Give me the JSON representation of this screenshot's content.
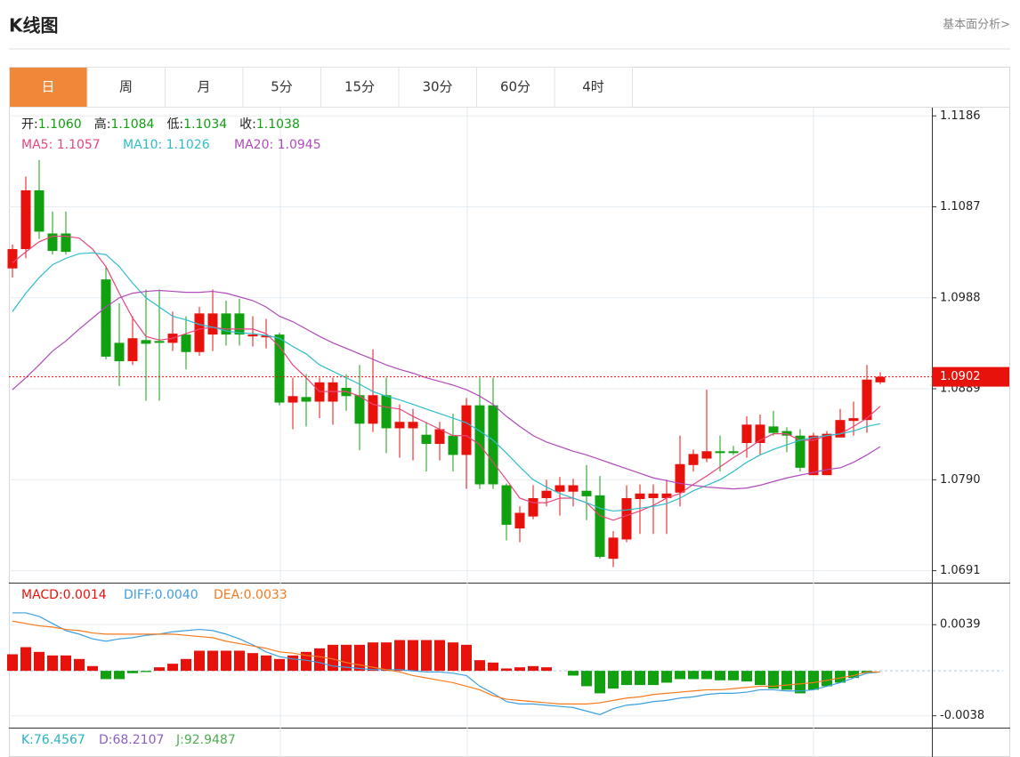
{
  "header": {
    "title": "K线图",
    "link": "基本面分析>"
  },
  "tabs": [
    "日",
    "周",
    "月",
    "5分",
    "15分",
    "30分",
    "60分",
    "4时"
  ],
  "chart_data": [
    {
      "type": "candlestick",
      "up_color": "#e8120c",
      "down_color": "#10a010",
      "ohlc_labels": [
        {
          "label": "开:",
          "value": "1.1060"
        },
        {
          "label": "高:",
          "value": "1.1084"
        },
        {
          "label": "低:",
          "value": "1.1034"
        },
        {
          "label": "收:",
          "value": "1.1038"
        }
      ],
      "open": [
        1.102,
        1.1041,
        1.1105,
        1.1058,
        1.1058,
        null,
        null,
        1.1008,
        1.0939,
        1.0919,
        1.0942,
        1.0941,
        1.0939,
        1.0948,
        1.0929,
        1.0948,
        1.0971,
        1.0971,
        1.0946,
        1.0945,
        1.0948,
        1.0874,
        1.088,
        1.0875,
        1.0875,
        1.089,
        1.0882,
        1.0851,
        1.0882,
        1.0846,
        1.0846,
        1.0839,
        1.0829,
        1.0838,
        1.0817,
        1.0871,
        1.0871,
        1.0784,
        1.0737,
        1.075,
        1.077,
        1.0777,
        1.0777,
        1.0778,
        1.0773,
        1.0704,
        1.0725,
        1.0769,
        1.077,
        1.077,
        1.0776,
        1.0806,
        1.0813,
        1.0821,
        1.0821,
        1.083,
        1.083,
        1.0848,
        1.0843,
        1.0838,
        1.0795,
        1.0795,
        1.0836,
        1.0854,
        1.0855,
        1.0896
      ],
      "high": [
        1.1046,
        1.112,
        1.1138,
        1.1082,
        1.1082,
        null,
        null,
        1.1023,
        1.0982,
        1.0968,
        1.0997,
        1.0997,
        1.0973,
        1.0968,
        1.0978,
        1.0997,
        1.0985,
        1.0987,
        1.0968,
        1.0965,
        1.095,
        1.0901,
        1.0905,
        1.0901,
        1.0901,
        1.0905,
        1.0915,
        1.0932,
        1.0901,
        1.0872,
        1.0867,
        1.0853,
        1.0853,
        1.0862,
        1.0879,
        1.0901,
        1.0901,
        1.0786,
        1.0761,
        1.0784,
        1.079,
        1.0793,
        1.0791,
        1.0806,
        1.0794,
        1.0734,
        1.0784,
        1.0785,
        1.0785,
        1.079,
        1.0838,
        1.0823,
        1.0888,
        1.0838,
        1.0827,
        1.0859,
        1.0861,
        1.0865,
        1.0847,
        1.0845,
        1.0841,
        1.0843,
        1.0867,
        1.0875,
        1.0915,
        1.0907
      ],
      "low": [
        1.101,
        1.1031,
        1.1052,
        1.1035,
        1.1035,
        null,
        null,
        1.0921,
        1.0892,
        1.0915,
        1.0876,
        1.0876,
        1.093,
        1.091,
        1.0925,
        1.093,
        1.0936,
        1.0936,
        1.0935,
        1.0933,
        1.0871,
        1.0845,
        1.0848,
        1.0857,
        1.085,
        1.0865,
        1.0822,
        1.0842,
        1.0819,
        1.0814,
        1.0811,
        1.0799,
        1.0811,
        1.0799,
        1.078,
        1.078,
        1.078,
        1.0724,
        1.0722,
        1.0747,
        1.0761,
        1.0751,
        1.0761,
        1.0746,
        1.0704,
        1.0695,
        1.0722,
        1.0731,
        1.0731,
        1.0731,
        1.0761,
        1.0799,
        1.0809,
        1.0799,
        1.0817,
        1.0814,
        1.0817,
        1.0838,
        1.082,
        1.0799,
        1.0795,
        1.0795,
        1.0836,
        1.0838,
        1.0841,
        1.0894
      ],
      "close": [
        1.1041,
        1.1105,
        1.106,
        1.1039,
        1.1038,
        null,
        null,
        1.0924,
        1.0919,
        1.0944,
        1.0938,
        1.0939,
        1.0949,
        1.0929,
        1.0971,
        1.0971,
        1.0948,
        1.0948,
        1.0948,
        1.0947,
        1.0874,
        1.0881,
        1.0875,
        1.0896,
        1.0896,
        1.0881,
        1.0851,
        1.0882,
        1.0846,
        1.0853,
        1.0853,
        1.0829,
        1.0845,
        1.0817,
        1.0871,
        1.0785,
        1.0785,
        1.0741,
        1.0754,
        1.077,
        1.0778,
        1.0784,
        1.0784,
        1.0772,
        1.0706,
        1.0727,
        1.077,
        1.0775,
        1.0775,
        1.0775,
        1.0807,
        1.0818,
        1.0821,
        1.0819,
        1.0819,
        1.085,
        1.085,
        1.0841,
        1.0838,
        1.0803,
        1.0838,
        1.084,
        1.0855,
        1.0857,
        1.0899,
        1.0902
      ],
      "series": [
        {
          "name": "MA5: 1.1057",
          "color": "#e8457a",
          "values": [
            1.1026,
            1.1038,
            1.1049,
            1.1055,
            1.1055,
            1.1053,
            1.1041,
            1.1022,
            1.0993,
            1.0966,
            1.0946,
            1.0942,
            1.0944,
            1.0949,
            1.0954,
            1.0956,
            1.0954,
            1.0954,
            1.0954,
            1.0949,
            1.0935,
            1.0915,
            1.0901,
            1.0886,
            1.0886,
            1.0886,
            1.0881,
            1.0872,
            1.0869,
            1.0867,
            1.0859,
            1.0852,
            1.0845,
            1.0838,
            1.0838,
            1.0828,
            1.0809,
            1.079,
            1.077,
            1.0765,
            1.0765,
            1.077,
            1.077,
            1.0765,
            1.0751,
            1.0746,
            1.0751,
            1.0756,
            1.0762,
            1.077,
            1.0775,
            1.0785,
            1.0794,
            1.0804,
            1.0814,
            1.0823,
            1.0833,
            1.084,
            1.084,
            1.0833,
            1.0833,
            1.0838,
            1.084,
            1.0848,
            1.0857,
            1.087
          ]
        },
        {
          "name": "MA10: 1.1026",
          "color": "#2fbccc",
          "values": [
            1.0973,
            1.0993,
            1.101,
            1.1024,
            1.1031,
            1.1036,
            1.1037,
            1.1035,
            1.1022,
            1.1004,
            1.0988,
            1.0978,
            1.0968,
            1.0964,
            1.0959,
            1.0956,
            1.0952,
            1.095,
            1.0949,
            1.0947,
            1.0944,
            1.0935,
            1.0927,
            1.0915,
            1.0908,
            1.0901,
            1.0894,
            1.0886,
            1.0881,
            1.0877,
            1.0872,
            1.0867,
            1.0862,
            1.0857,
            1.0852,
            1.0843,
            1.0833,
            1.0819,
            1.0804,
            1.079,
            1.0782,
            1.0775,
            1.077,
            1.0765,
            1.0759,
            1.0756,
            1.0757,
            1.0759,
            1.0761,
            1.0764,
            1.077,
            1.0778,
            1.0784,
            1.079,
            1.0799,
            1.0809,
            1.0817,
            1.0823,
            1.0828,
            1.0833,
            1.0836,
            1.0838,
            1.084,
            1.0843,
            1.0848,
            1.0851
          ]
        },
        {
          "name": "MA20: 1.0945",
          "color": "#b04bbb",
          "values": [
            1.0888,
            1.0901,
            1.0915,
            1.093,
            1.0941,
            1.0954,
            1.0966,
            1.0978,
            1.0988,
            1.0993,
            1.0995,
            1.0996,
            1.0995,
            1.0994,
            1.0994,
            1.0995,
            1.0993,
            1.0989,
            1.0985,
            1.0978,
            1.0968,
            1.0962,
            1.0954,
            1.0946,
            1.0939,
            1.0933,
            1.0927,
            1.0921,
            1.0915,
            1.091,
            1.0906,
            1.0901,
            1.0897,
            1.0893,
            1.0888,
            1.0881,
            1.0872,
            1.0859,
            1.0848,
            1.0838,
            1.0831,
            1.0826,
            1.0821,
            1.0817,
            1.0812,
            1.0807,
            1.0802,
            1.0797,
            1.0792,
            1.0789,
            1.0786,
            1.0784,
            1.0782,
            1.0781,
            1.078,
            1.0781,
            1.0784,
            1.0788,
            1.0792,
            1.0795,
            1.0798,
            1.0801,
            1.0803,
            1.0809,
            1.0817,
            1.0826
          ]
        }
      ],
      "last": 1.0902,
      "last_color": "#e8120c",
      "ylim": [
        1.0678,
        1.1194
      ],
      "yticks": [
        1.1186,
        1.1087,
        1.0988,
        1.0889,
        {
          "value": 1.079,
          "label": "1.0790"
        },
        1.0691
      ],
      "grid": true
    },
    {
      "type": "macd",
      "up_color": "#e8120c",
      "down_color": "#10a010",
      "values": [
        0.0014,
        0.002,
        0.0016,
        0.0013,
        0.0013,
        0.001,
        0.0004,
        -0.0007,
        -0.0007,
        -0.0002,
        -0.0001,
        0.0003,
        0.0006,
        0.001,
        0.0017,
        0.0017,
        0.0017,
        0.0017,
        0.0015,
        0.0013,
        0.001,
        0.0013,
        0.0016,
        0.0019,
        0.0022,
        0.0022,
        0.0022,
        0.0024,
        0.0024,
        0.0026,
        0.0026,
        0.0026,
        0.0026,
        0.0024,
        0.0022,
        0.0009,
        0.0007,
        0.0002,
        0.0003,
        0.0004,
        0.0003,
        0,
        -0.0004,
        -0.0013,
        -0.0019,
        -0.0015,
        -0.0012,
        -0.0012,
        -0.0012,
        -0.001,
        -0.0007,
        -0.0007,
        -0.0007,
        -0.0008,
        -0.0008,
        -0.0009,
        -0.0012,
        -0.0015,
        -0.0016,
        -0.0019,
        -0.0016,
        -0.0013,
        -0.001,
        -0.0006,
        -0.0002,
        0
      ],
      "name": "MACD:0.0014",
      "color": "#e8120c",
      "series": [
        {
          "name": "DIFF:0.0040",
          "color": "#3d9fe0",
          "values": [
            0.0049,
            0.0049,
            0.0046,
            0.004,
            0.0034,
            0.0031,
            0.0027,
            0.0025,
            0.0027,
            0.0028,
            0.003,
            0.0031,
            0.0033,
            0.0034,
            0.0035,
            0.0034,
            0.0031,
            0.0027,
            0.0022,
            0.0016,
            0.0012,
            0.001,
            0.0009,
            0.0007,
            0.0004,
            0.0003,
            0.0002,
            0.0001,
            0.0001,
            0.0001,
            0,
            -0.0001,
            -0.0001,
            -0.0002,
            -0.0004,
            -0.0013,
            -0.0019,
            -0.0026,
            -0.0028,
            -0.0028,
            -0.0029,
            -0.003,
            -0.0031,
            -0.0034,
            -0.0037,
            -0.0032,
            -0.0029,
            -0.0028,
            -0.0026,
            -0.0025,
            -0.0023,
            -0.0022,
            -0.002,
            -0.0019,
            -0.0019,
            -0.0018,
            -0.0016,
            -0.0016,
            -0.0017,
            -0.0017,
            -0.0016,
            -0.0013,
            -0.001,
            -0.0006,
            -0.0002,
            -0.0001
          ]
        },
        {
          "name": "DEA:0.0033",
          "color": "#f57a1e",
          "values": [
            0.0042,
            0.004,
            0.0038,
            0.0037,
            0.0035,
            0.0034,
            0.0032,
            0.0031,
            0.0031,
            0.0031,
            0.0031,
            0.0031,
            0.0031,
            0.003,
            0.0029,
            0.0028,
            0.0025,
            0.0023,
            0.0021,
            0.0019,
            0.0016,
            0.0015,
            0.0013,
            0.0012,
            0.001,
            0.0007,
            0.0005,
            0.0003,
            0.0001,
            -0.0001,
            -0.0004,
            -0.0006,
            -0.0008,
            -0.001,
            -0.0013,
            -0.0016,
            -0.0021,
            -0.0024,
            -0.0025,
            -0.0026,
            -0.0027,
            -0.0028,
            -0.0028,
            -0.0028,
            -0.0027,
            -0.0025,
            -0.0023,
            -0.0022,
            -0.002,
            -0.0019,
            -0.0018,
            -0.0017,
            -0.0016,
            -0.0016,
            -0.0015,
            -0.0014,
            -0.0013,
            -0.0013,
            -0.0012,
            -0.0011,
            -0.001,
            -0.0008,
            -0.0006,
            -0.0004,
            -0.0001,
            -0.0001
          ]
        }
      ],
      "ylim": [
        -0.0048,
        0.0073
      ],
      "yticks": [
        0.0039,
        -0.0038
      ],
      "zero_line": true
    }
  ],
  "kdj_legend": [
    {
      "text": "K:76.4567",
      "color": "#26b3c6"
    },
    {
      "text": "D:68.2107",
      "color": "#8d5fc6"
    },
    {
      "text": "J:92.9487",
      "color": "#4caf50"
    }
  ]
}
